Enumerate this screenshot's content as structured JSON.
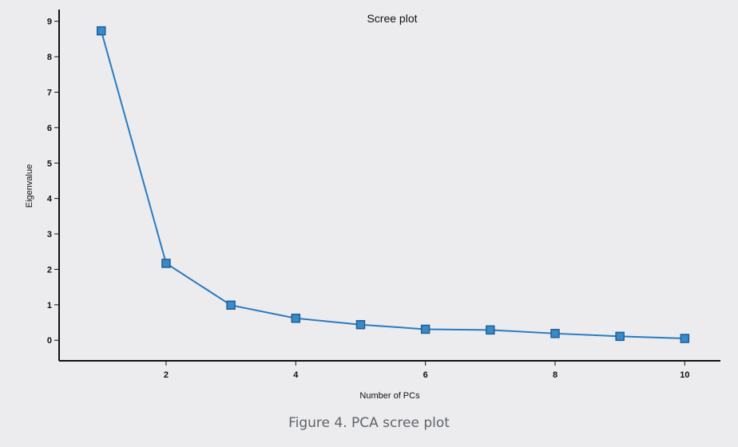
{
  "chart_data": {
    "type": "line",
    "title": "Scree plot",
    "xlabel": "Number of PCs",
    "ylabel": "Eigenvalue",
    "x": [
      1,
      2,
      3,
      4,
      5,
      6,
      7,
      8,
      9,
      10
    ],
    "values": [
      8.73,
      2.17,
      0.99,
      0.62,
      0.44,
      0.31,
      0.29,
      0.19,
      0.11,
      0.05
    ],
    "xlim": [
      0.35,
      10.55
    ],
    "ylim": [
      -0.58,
      9.33
    ],
    "xticks": [
      2,
      4,
      6,
      8,
      10
    ],
    "yticks": [
      0,
      1,
      2,
      3,
      4,
      5,
      6,
      7,
      8,
      9
    ],
    "marker": "square",
    "grid": false,
    "color": "#2a7bbf",
    "marker_fill": "#3a8ac9"
  },
  "caption": "Figure 4. PCA scree plot"
}
